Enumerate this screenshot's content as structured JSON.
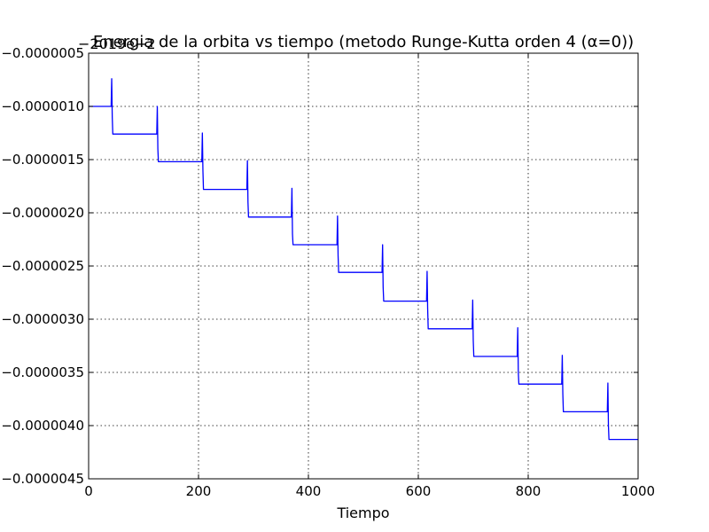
{
  "chart_data": {
    "type": "line",
    "title": "Energia de la orbita vs tiempo (metodo Runge-Kutta orden 4 (α=0))",
    "xlabel": "Tiempo",
    "ylabel": "",
    "y_offset_text": "−2019e−2",
    "xlim": [
      0,
      1000
    ],
    "ylim": [
      -4.5e-06,
      -5e-07
    ],
    "grid": true,
    "x_ticks": [
      0,
      200,
      400,
      600,
      800,
      1000
    ],
    "x_tick_labels": [
      "0",
      "200",
      "400",
      "600",
      "800",
      "1000"
    ],
    "y_ticks": [
      -5e-07,
      -1e-06,
      -1.5e-06,
      -2e-06,
      -2.5e-06,
      -3e-06,
      -3.5e-06,
      -4e-06,
      -4.5e-06
    ],
    "y_tick_labels": [
      "−0.0000005",
      "−0.0000010",
      "−0.0000015",
      "−0.0000020",
      "−0.0000025",
      "−0.0000030",
      "−0.0000035",
      "−0.0000040",
      "−0.0000045"
    ],
    "line_color": "#0000ff",
    "series": [
      {
        "x": [
          0,
          41,
          42,
          43,
          44,
          124,
          125,
          126,
          127,
          206,
          207,
          208,
          209,
          288,
          289,
          290,
          291,
          369,
          370,
          371,
          372,
          452,
          453,
          454,
          455,
          534,
          535,
          536,
          537,
          615,
          616,
          617,
          618,
          698,
          699,
          700,
          701,
          780,
          781,
          782,
          783,
          861,
          862,
          863,
          864,
          944,
          945,
          946,
          947,
          1000
        ],
        "y": [
          -1e-06,
          -1e-06,
          -7.4e-07,
          -1.1e-06,
          -1.26e-06,
          -1.26e-06,
          -1e-06,
          -1.4e-06,
          -1.52e-06,
          -1.52e-06,
          -1.25e-06,
          -1.6e-06,
          -1.78e-06,
          -1.78e-06,
          -1.51e-06,
          -1.9e-06,
          -2.04e-06,
          -2.04e-06,
          -1.77e-06,
          -2.2e-06,
          -2.3e-06,
          -2.3e-06,
          -2.03e-06,
          -2.4e-06,
          -2.56e-06,
          -2.56e-06,
          -2.3e-06,
          -2.7e-06,
          -2.83e-06,
          -2.83e-06,
          -2.55e-06,
          -2.9e-06,
          -3.09e-06,
          -3.09e-06,
          -2.82e-06,
          -3.2e-06,
          -3.35e-06,
          -3.35e-06,
          -3.08e-06,
          -3.5e-06,
          -3.61e-06,
          -3.61e-06,
          -3.34e-06,
          -3.7e-06,
          -3.87e-06,
          -3.87e-06,
          -3.6e-06,
          -4e-06,
          -4.13e-06,
          -4.13e-06
        ]
      }
    ]
  }
}
